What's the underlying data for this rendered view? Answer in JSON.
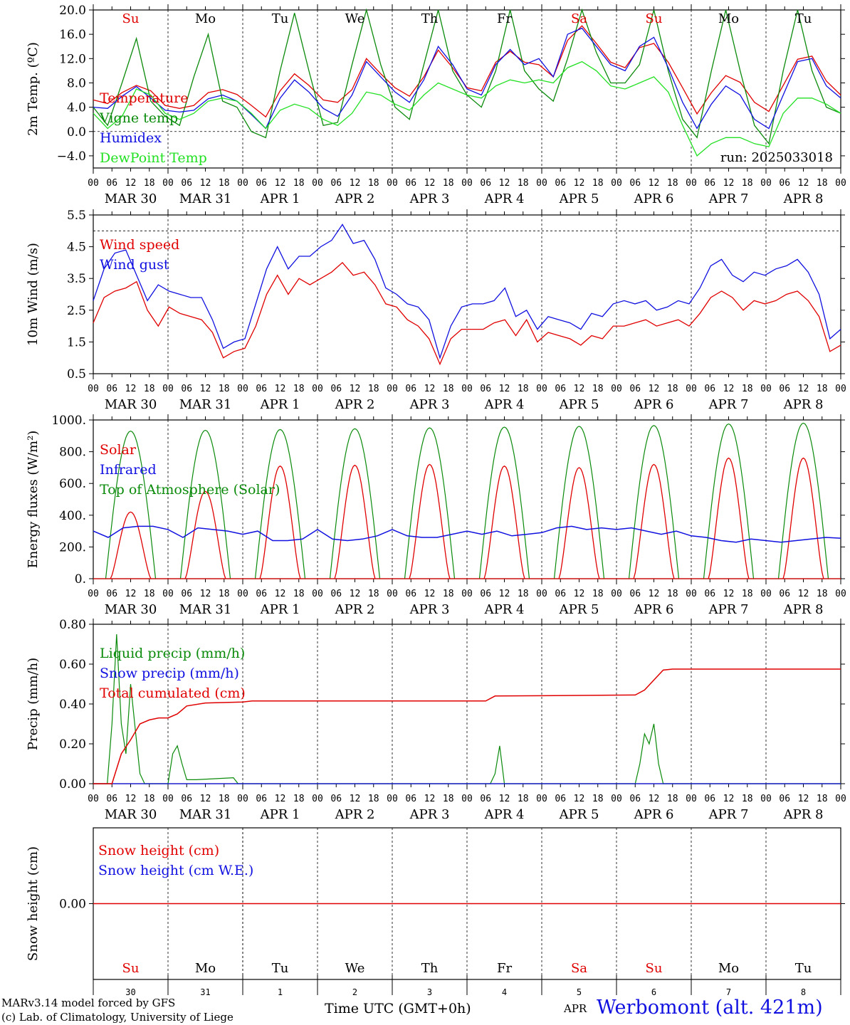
{
  "colors": {
    "red": "#e00000",
    "green": "#0a8a0a",
    "blue": "#1010e0",
    "lightgreen": "#22e022",
    "black": "#000000"
  },
  "x_ticks": [
    "00",
    "06",
    "12",
    "18"
  ],
  "final_tick": "00",
  "date_labels": [
    "MAR 30",
    "MAR 31",
    "APR  1",
    "APR  2",
    "APR  3",
    "APR  4",
    "APR  5",
    "APR  6",
    "APR  7",
    "APR  8"
  ],
  "weekdays": [
    {
      "label": "Su",
      "color": "#e00000"
    },
    {
      "label": "Mo",
      "color": "#000000"
    },
    {
      "label": "Tu",
      "color": "#000000"
    },
    {
      "label": "We",
      "color": "#000000"
    },
    {
      "label": "Th",
      "color": "#000000"
    },
    {
      "label": "Fr",
      "color": "#000000"
    },
    {
      "label": "Sa",
      "color": "#e00000"
    },
    {
      "label": "Su",
      "color": "#e00000"
    },
    {
      "label": "Mo",
      "color": "#000000"
    },
    {
      "label": "Tu",
      "color": "#000000"
    }
  ],
  "day_numbers": [
    "30",
    "31",
    "1",
    "2",
    "3",
    "4",
    "5",
    "6",
    "7",
    "8"
  ],
  "footer": {
    "model": "MARv3.14 model forced by GFS",
    "lab": "(c) Lab. of Climatology, University of Liege",
    "xlabel": "Time UTC (GMT+0h)",
    "month": "APR",
    "station": "Werbomont (alt. 421m)"
  },
  "chart_data": [
    {
      "type": "line",
      "ylabel": "2m Temp. (ºC)",
      "ylim": [
        -6,
        20
      ],
      "yticks": [
        "20.0",
        "16.0",
        "12.0",
        "8.0",
        "4.0",
        "0.0",
        "−4.0"
      ],
      "ytick_values": [
        20,
        16,
        12,
        8,
        4,
        0,
        -4
      ],
      "hline": 0,
      "annotation": "run: 2025033018",
      "x_hours": "0..240 step 6",
      "series": [
        {
          "name": "Temperature",
          "color": "#e00000",
          "values": [
            5.2,
            4.6,
            6.4,
            7.6,
            6.7,
            4.3,
            3.8,
            4.3,
            6.4,
            6.9,
            6.1,
            4.3,
            2.4,
            6.7,
            9.5,
            7.6,
            5.2,
            4.8,
            6.9,
            12.0,
            9.5,
            7.2,
            5.8,
            9.0,
            13.4,
            10.5,
            7.2,
            6.7,
            11.4,
            13.2,
            11.4,
            11.0,
            9.0,
            15.0,
            17.4,
            14.5,
            11.4,
            10.5,
            13.8,
            14.5,
            11.4,
            7.2,
            2.9,
            6.4,
            9.2,
            8.1,
            4.8,
            3.3,
            7.6,
            11.9,
            12.4,
            8.3,
            6.0
          ]
        },
        {
          "name": "Vigne temp",
          "color": "#0a8a0a",
          "values": [
            4.0,
            1.0,
            8.0,
            15.3,
            5.0,
            2.5,
            1.0,
            9.0,
            16.0,
            5.0,
            4.0,
            0.0,
            -1.0,
            10.0,
            19.5,
            10.0,
            1.0,
            1.5,
            11.0,
            20.0,
            11.0,
            4.0,
            2.0,
            11.0,
            20.0,
            10.0,
            6.0,
            4.0,
            10.0,
            20.0,
            10.0,
            7.0,
            5.0,
            12.0,
            20.0,
            13.0,
            8.0,
            8.0,
            11.0,
            20.0,
            10.0,
            2.0,
            -1.0,
            10.0,
            20.0,
            10.0,
            1.0,
            -2.0,
            10.0,
            20.0,
            10.0,
            4.0,
            3.0
          ]
        },
        {
          "name": "Humidex",
          "color": "#1010e0",
          "values": [
            4.0,
            3.8,
            5.8,
            7.4,
            5.5,
            3.5,
            3.2,
            3.5,
            5.4,
            6.0,
            5.0,
            2.8,
            0.5,
            5.5,
            8.5,
            6.5,
            3.8,
            2.5,
            6.0,
            11.5,
            9.0,
            6.5,
            4.8,
            8.5,
            14.0,
            11.0,
            7.0,
            6.0,
            11.0,
            13.5,
            11.0,
            12.0,
            9.0,
            16.0,
            17.0,
            14.0,
            11.0,
            10.0,
            14.0,
            15.5,
            10.5,
            4.8,
            0.5,
            4.5,
            7.5,
            6.0,
            2.0,
            0.5,
            6.0,
            11.5,
            12.0,
            7.5,
            5.5
          ]
        },
        {
          "name": "DewPoint Temp",
          "color": "#22e022",
          "values": [
            3.0,
            0.5,
            2.5,
            7.0,
            6.0,
            3.0,
            2.0,
            3.0,
            5.0,
            5.5,
            5.0,
            3.0,
            0.5,
            3.5,
            4.5,
            3.8,
            2.0,
            1.0,
            3.0,
            6.5,
            6.0,
            4.5,
            3.5,
            6.0,
            8.0,
            7.0,
            6.0,
            5.5,
            7.5,
            8.5,
            8.0,
            8.5,
            8.0,
            10.5,
            11.5,
            10.0,
            7.5,
            7.0,
            8.0,
            9.0,
            6.5,
            1.0,
            -4.0,
            -2.0,
            -1.0,
            -1.0,
            -2.0,
            -2.5,
            3.0,
            5.5,
            5.5,
            4.5,
            3.0
          ]
        }
      ]
    },
    {
      "type": "line",
      "ylabel": "10m Wind (m/s)",
      "ylim": [
        0.5,
        5.5
      ],
      "yticks": [
        "5.5",
        "4.5",
        "3.5",
        "2.5",
        "1.5",
        "0.5"
      ],
      "ytick_values": [
        5.5,
        4.5,
        3.5,
        2.5,
        1.5,
        0.5
      ],
      "hline": 5.0,
      "x_hours": "0..240 step 6",
      "series": [
        {
          "name": "Wind speed",
          "color": "#e00000",
          "values": [
            2.1,
            2.9,
            3.1,
            3.2,
            3.4,
            2.5,
            2.0,
            2.6,
            2.4,
            2.3,
            2.2,
            1.8,
            1.0,
            1.2,
            1.3,
            2.0,
            3.0,
            3.6,
            3.0,
            3.5,
            3.3,
            3.5,
            3.7,
            4.0,
            3.6,
            3.7,
            3.3,
            2.7,
            2.6,
            2.2,
            2.0,
            1.6,
            0.8,
            1.6,
            1.9,
            1.9,
            1.9,
            2.1,
            2.2,
            1.7,
            2.2,
            1.5,
            1.8,
            1.7,
            1.6,
            1.4,
            1.7,
            1.6,
            2.0,
            2.0,
            2.1,
            2.2,
            2.0,
            2.1,
            2.2,
            2.0,
            2.4,
            2.9,
            3.1,
            2.9,
            2.5,
            2.8,
            2.7,
            2.8,
            3.0,
            3.1,
            2.8,
            2.3,
            1.2,
            1.4
          ]
        },
        {
          "name": "Wind gust",
          "color": "#1010e0",
          "values": [
            2.8,
            3.8,
            4.3,
            4.4,
            3.6,
            2.8,
            3.3,
            3.1,
            3.0,
            2.9,
            2.9,
            2.2,
            1.3,
            1.5,
            1.6,
            2.7,
            3.8,
            4.5,
            3.8,
            4.2,
            4.2,
            4.5,
            4.7,
            5.2,
            4.6,
            4.7,
            4.1,
            3.2,
            3.0,
            2.7,
            2.6,
            2.2,
            1.0,
            2.0,
            2.6,
            2.7,
            2.7,
            2.8,
            3.2,
            2.3,
            2.5,
            1.9,
            2.3,
            2.2,
            2.1,
            1.9,
            2.4,
            2.3,
            2.7,
            2.8,
            2.7,
            2.8,
            2.5,
            2.6,
            2.8,
            2.7,
            3.2,
            3.9,
            4.1,
            3.6,
            3.4,
            3.7,
            3.6,
            3.8,
            3.9,
            4.1,
            3.7,
            3.0,
            1.6,
            1.9
          ]
        }
      ]
    },
    {
      "type": "line",
      "ylabel": "Energy fluxes (W/m²)",
      "ylim": [
        0,
        1000
      ],
      "yticks": [
        "1000.",
        "800.",
        "600.",
        "400.",
        "200.",
        "0."
      ],
      "ytick_values": [
        1000,
        800,
        600,
        400,
        200,
        0
      ],
      "series": [
        {
          "name": "Solar",
          "color": "#e00000",
          "daily_peaks": [
            420,
            550,
            710,
            715,
            720,
            710,
            700,
            720,
            760,
            760
          ]
        },
        {
          "name": "Infrared",
          "color": "#1010e0",
          "values": [
            300,
            260,
            320,
            330,
            330,
            310,
            260,
            320,
            310,
            300,
            280,
            300,
            240,
            240,
            250,
            310,
            250,
            240,
            250,
            270,
            310,
            270,
            260,
            260,
            280,
            300,
            280,
            300,
            270,
            280,
            290,
            320,
            330,
            310,
            320,
            310,
            320,
            300,
            280,
            300,
            270,
            260,
            240,
            230,
            250,
            240,
            230,
            240,
            250,
            260,
            255
          ]
        },
        {
          "name": "Top of Atmosphere (Solar)",
          "color": "#0a8a0a",
          "daily_peaks": [
            930,
            935,
            940,
            945,
            950,
            955,
            960,
            965,
            975,
            980
          ]
        }
      ]
    },
    {
      "type": "line",
      "ylabel": "Precip (mm/h)",
      "ylim": [
        0,
        0.8
      ],
      "yticks": [
        "0.80",
        "0.60",
        "0.40",
        "0.20",
        "0.00"
      ],
      "ytick_values": [
        0.8,
        0.6,
        0.4,
        0.2,
        0.0
      ],
      "series": [
        {
          "name": "Liquid precip (mm/h)",
          "color": "#0a8a0a",
          "events": [
            [
              3,
              0.0
            ],
            [
              4,
              0.3
            ],
            [
              5,
              0.75
            ],
            [
              6,
              0.3
            ],
            [
              7,
              0.15
            ],
            [
              8,
              0.5
            ],
            [
              9,
              0.27
            ],
            [
              10,
              0.05
            ],
            [
              11,
              0.0
            ],
            [
              16,
              0.0
            ],
            [
              17,
              0.15
            ],
            [
              18,
              0.19
            ],
            [
              19,
              0.1
            ],
            [
              20,
              0.02
            ],
            [
              22,
              0.02
            ],
            [
              30,
              0.03
            ],
            [
              31,
              0.0
            ],
            [
              85,
              0.0
            ],
            [
              86,
              0.05
            ],
            [
              87,
              0.19
            ],
            [
              88,
              0.0
            ],
            [
              116,
              0.0
            ],
            [
              117,
              0.1
            ],
            [
              118,
              0.25
            ],
            [
              119,
              0.2
            ],
            [
              120,
              0.3
            ],
            [
              121,
              0.1
            ],
            [
              122,
              0.0
            ]
          ]
        },
        {
          "name": "Snow precip (mm/h)",
          "color": "#1010e0",
          "values": []
        },
        {
          "name": "Total cumulated (cm)",
          "color": "#e00000",
          "values": [
            [
              0,
              0
            ],
            [
              4,
              0
            ],
            [
              6,
              0.15
            ],
            [
              8,
              0.22
            ],
            [
              10,
              0.3
            ],
            [
              12,
              0.32
            ],
            [
              14,
              0.33
            ],
            [
              16,
              0.33
            ],
            [
              18,
              0.35
            ],
            [
              20,
              0.39
            ],
            [
              24,
              0.405
            ],
            [
              32,
              0.41
            ],
            [
              34,
              0.415
            ],
            [
              84,
              0.415
            ],
            [
              86,
              0.44
            ],
            [
              116,
              0.445
            ],
            [
              118,
              0.47
            ],
            [
              120,
              0.52
            ],
            [
              122,
              0.57
            ],
            [
              124,
              0.575
            ],
            [
              160,
              0.575
            ]
          ]
        }
      ]
    },
    {
      "type": "line",
      "ylabel": "Snow height (cm)",
      "ylim": [
        -1,
        1
      ],
      "yticks": [
        "0.00"
      ],
      "ytick_values": [
        0
      ],
      "series": [
        {
          "name": "Snow height (cm)",
          "color": "#e00000",
          "values": [
            0,
            0
          ]
        },
        {
          "name": "Snow height (cm W.E.)",
          "color": "#1010e0",
          "values": []
        }
      ]
    }
  ]
}
